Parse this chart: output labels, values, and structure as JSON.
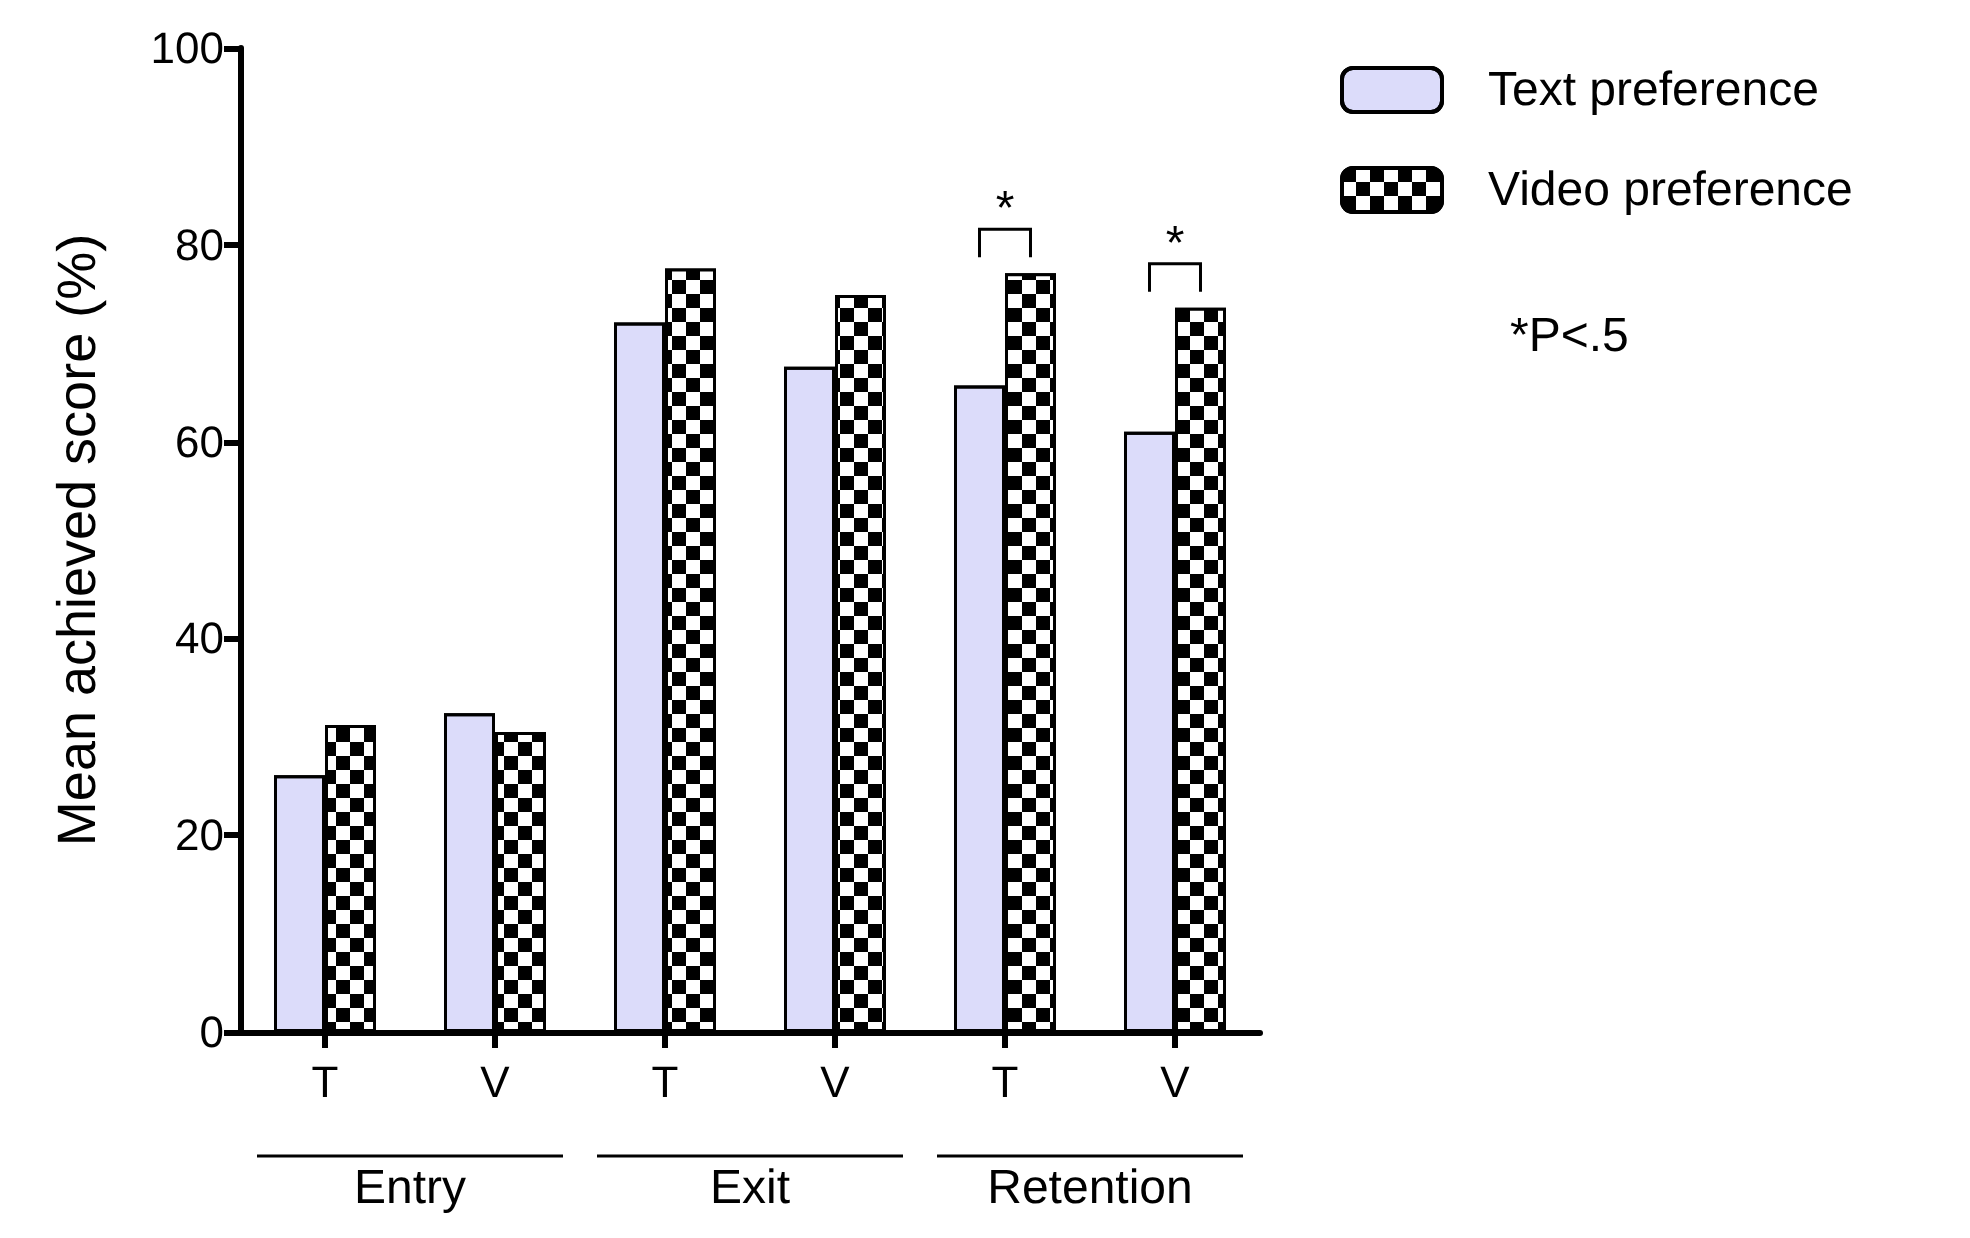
{
  "chart_data": {
    "type": "bar",
    "ylabel": "Mean achieved score (%)",
    "categories": [
      "T",
      "V",
      "T",
      "V",
      "T",
      "V"
    ],
    "series": [
      {
        "name": "Text preference",
        "color": "#dcdcfa",
        "values": [
          26.1,
          32.4,
          72.1,
          67.6,
          65.7,
          61.0
        ]
      },
      {
        "name": "Video preference",
        "color": "#000000",
        "values": [
          31.2,
          30.5,
          77.6,
          74.9,
          77.1,
          73.6
        ]
      }
    ],
    "ylim": [
      0,
      100
    ],
    "yticks": [
      0,
      20,
      40,
      60,
      80,
      100
    ],
    "grid": false,
    "legend": "top right",
    "annotations": [
      "Entry",
      "Exit",
      "Retention",
      "*",
      "*",
      "*P<.5"
    ]
  }
}
